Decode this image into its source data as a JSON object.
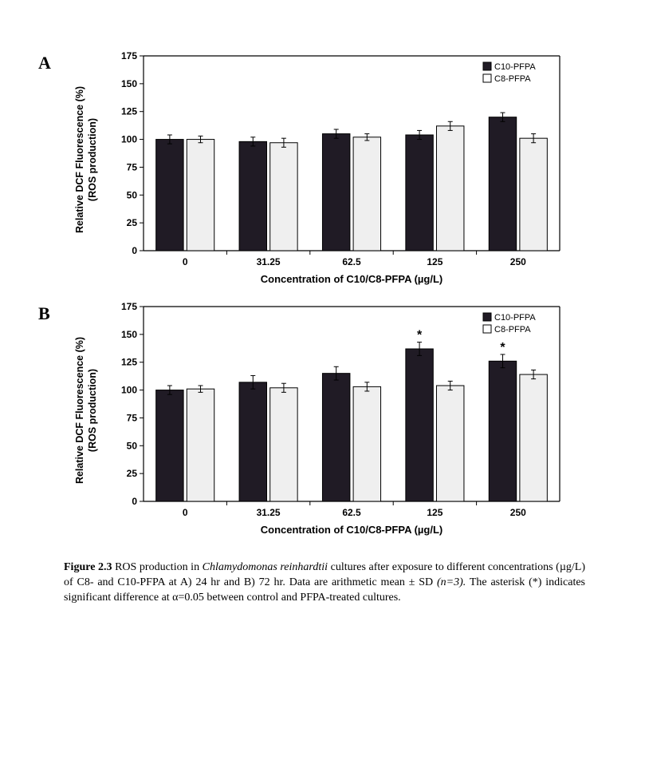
{
  "panels": [
    {
      "label": "A",
      "y_axis_label_line1": "Relative DCF Fluorescence (%)",
      "y_axis_label_line2": "(ROS production)",
      "x_axis_label": "Concentration of C10/C8-PFPA (µg/L)",
      "y_min": 0,
      "y_max": 175,
      "y_step": 25,
      "categories": [
        "0",
        "31.25",
        "62.5",
        "125",
        "250"
      ],
      "series": [
        {
          "name": "C10-PFPA",
          "color": "#201b25",
          "border": "#000000",
          "values": [
            100,
            98,
            105,
            104,
            120
          ],
          "err": [
            4,
            4,
            4,
            4,
            4
          ],
          "sig": [
            false,
            false,
            false,
            false,
            false
          ]
        },
        {
          "name": "C8-PFPA",
          "color": "#efefef",
          "border": "#000000",
          "values": [
            100,
            97,
            102,
            112,
            101
          ],
          "err": [
            3,
            4,
            3,
            4,
            4
          ],
          "sig": [
            false,
            false,
            false,
            false,
            false
          ]
        }
      ],
      "legend_items": [
        {
          "swatch": "#201b25",
          "label": "C10-PFPA"
        },
        {
          "swatch": "#ffffff",
          "label": "C8-PFPA"
        }
      ]
    },
    {
      "label": "B",
      "y_axis_label_line1": "Relative DCF Fluorescence (%)",
      "y_axis_label_line2": "(ROS production)",
      "x_axis_label": "Concentration of C10/C8-PFPA (µg/L)",
      "y_min": 0,
      "y_max": 175,
      "y_step": 25,
      "categories": [
        "0",
        "31.25",
        "62.5",
        "125",
        "250"
      ],
      "series": [
        {
          "name": "C10-PFPA",
          "color": "#201b25",
          "border": "#000000",
          "values": [
            100,
            107,
            115,
            137,
            126
          ],
          "err": [
            4,
            6,
            6,
            6,
            6
          ],
          "sig": [
            false,
            false,
            false,
            true,
            true
          ]
        },
        {
          "name": "C8-PFPA",
          "color": "#efefef",
          "border": "#000000",
          "values": [
            101,
            102,
            103,
            104,
            114
          ],
          "err": [
            3,
            4,
            4,
            4,
            4
          ],
          "sig": [
            false,
            false,
            false,
            false,
            false
          ]
        }
      ],
      "legend_items": [
        {
          "swatch": "#201b25",
          "label": "C10-PFPA"
        },
        {
          "swatch": "#ffffff",
          "label": "C8-PFPA"
        }
      ]
    }
  ],
  "chart_style": {
    "axis_color": "#000000",
    "tick_font_size": 12,
    "tick_font_weight": "bold",
    "bar_group_gap": 0.3,
    "bar_inner_gap": 0.04,
    "plot_bg": "#ffffff",
    "error_cap_width": 6
  },
  "caption": {
    "fig_num": "Figure 2.3",
    "text_1": " ROS production in ",
    "species": "Chlamydomonas reinhardtii",
    "text_2": " cultures after exposure to different concentrations (µg/L) of C8- and C10-PFPA at A) 24 hr and B) 72 hr. Data are arithmetic mean ± SD ",
    "n_text": "(n=3).",
    "text_3": " The asterisk (*) indicates significant difference at α=0.05 between control and PFPA-treated cultures."
  }
}
